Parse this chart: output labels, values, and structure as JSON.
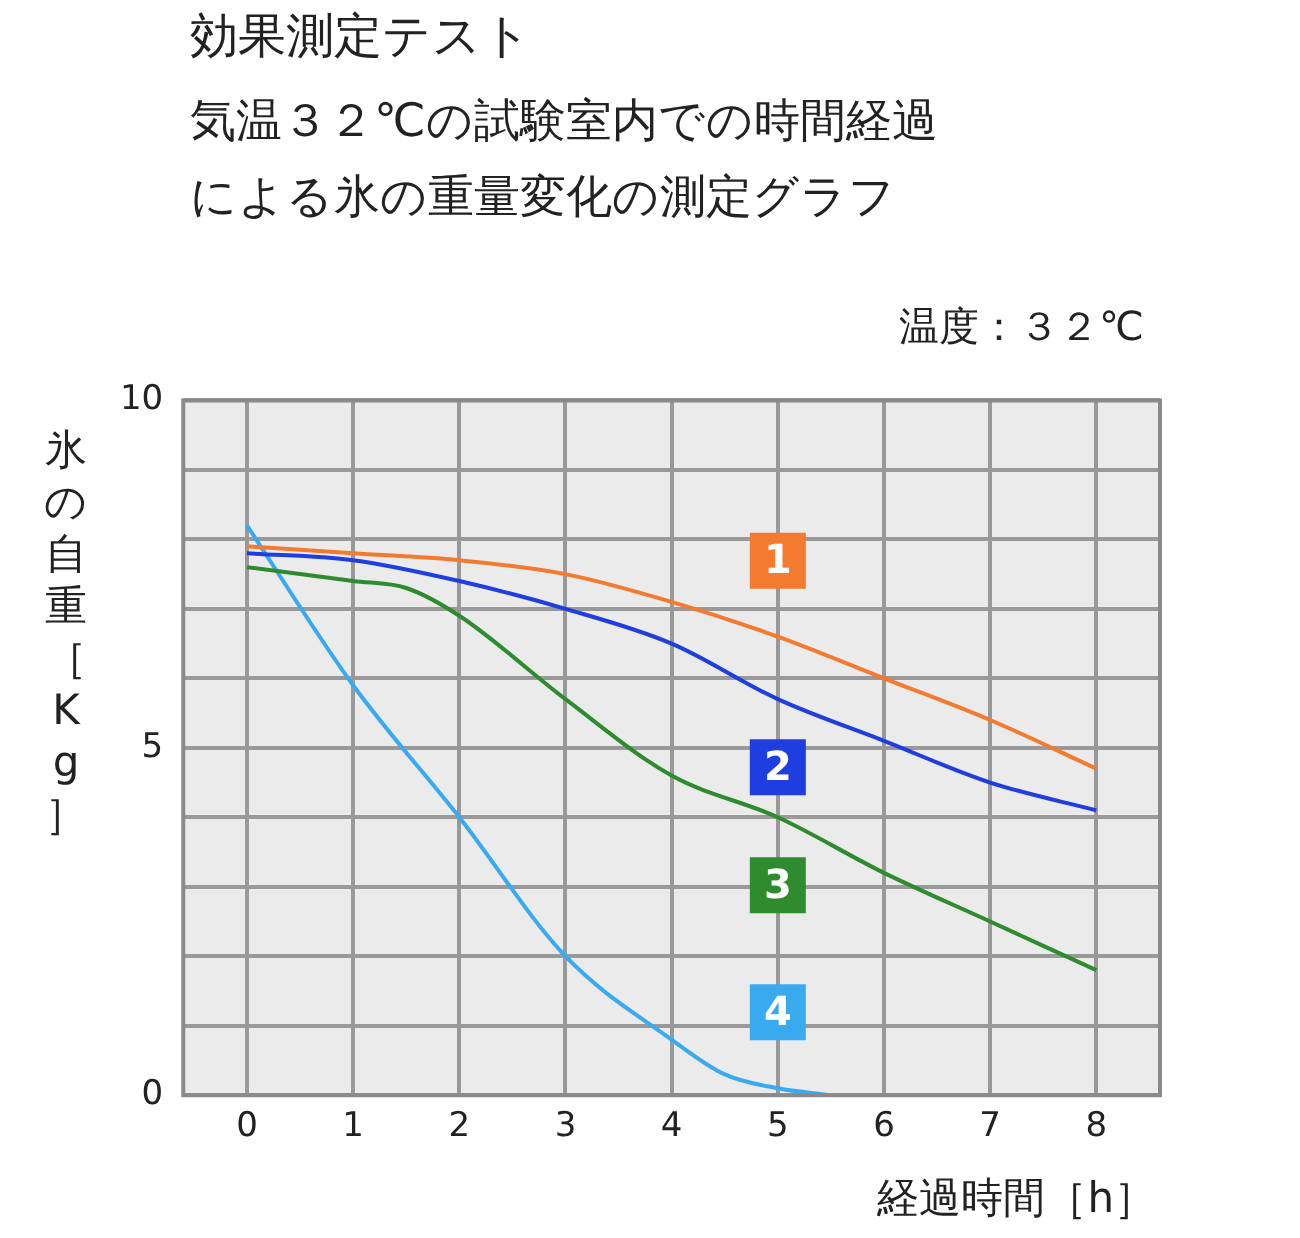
{
  "chart_data": {
    "type": "line",
    "title": "効果測定テスト",
    "subtitle": "気温３２℃の試験室内での時間経過による氷の重量変化の測定グラフ",
    "xlabel": "経過時間［h］",
    "ylabel": "氷の自重［Kg］",
    "annotations": [
      "温度：３２℃"
    ],
    "xlim": [
      -0.6,
      8.6
    ],
    "xticks": [
      0,
      1,
      2,
      3,
      4,
      5,
      6,
      7,
      8
    ],
    "ylim": [
      0,
      10
    ],
    "yticks": [
      0,
      {
        "value": 1,
        "label": null
      },
      {
        "value": 2,
        "label": null
      },
      {
        "value": 3,
        "label": null
      },
      {
        "value": 4,
        "label": null
      },
      5,
      {
        "value": 6,
        "label": null
      },
      {
        "value": 7,
        "label": null
      },
      {
        "value": 8,
        "label": null
      },
      {
        "value": 9,
        "label": null
      },
      10
    ],
    "grid": true,
    "marker": "none",
    "line_style": "solid",
    "series": [
      {
        "name": "1",
        "color": "#f47a30",
        "x": [
          0,
          1,
          2,
          3,
          4,
          5,
          6,
          7,
          8
        ],
        "values": [
          7.9,
          7.8,
          7.7,
          7.5,
          7.1,
          6.6,
          6.0,
          5.4,
          4.7
        ]
      },
      {
        "name": "2",
        "color": "#1e3ee0",
        "x": [
          0,
          1,
          2,
          3,
          4,
          5,
          6,
          7,
          8
        ],
        "values": [
          7.8,
          7.7,
          7.4,
          7.0,
          6.5,
          5.7,
          5.1,
          4.5,
          4.1
        ]
      },
      {
        "name": "3",
        "color": "#2e8b2e",
        "x": [
          0,
          1,
          1.5,
          2,
          3,
          4,
          5,
          6,
          7,
          8
        ],
        "values": [
          7.6,
          7.4,
          7.3,
          6.9,
          5.7,
          4.6,
          4.0,
          3.2,
          2.5,
          1.8
        ]
      },
      {
        "name": "4",
        "color": "#3aaaf0",
        "x": [
          0,
          1,
          2,
          3,
          4,
          4.5,
          5,
          5.5
        ],
        "values": [
          8.2,
          5.9,
          4.0,
          2.0,
          0.8,
          0.3,
          0.1,
          0
        ]
      }
    ]
  }
}
